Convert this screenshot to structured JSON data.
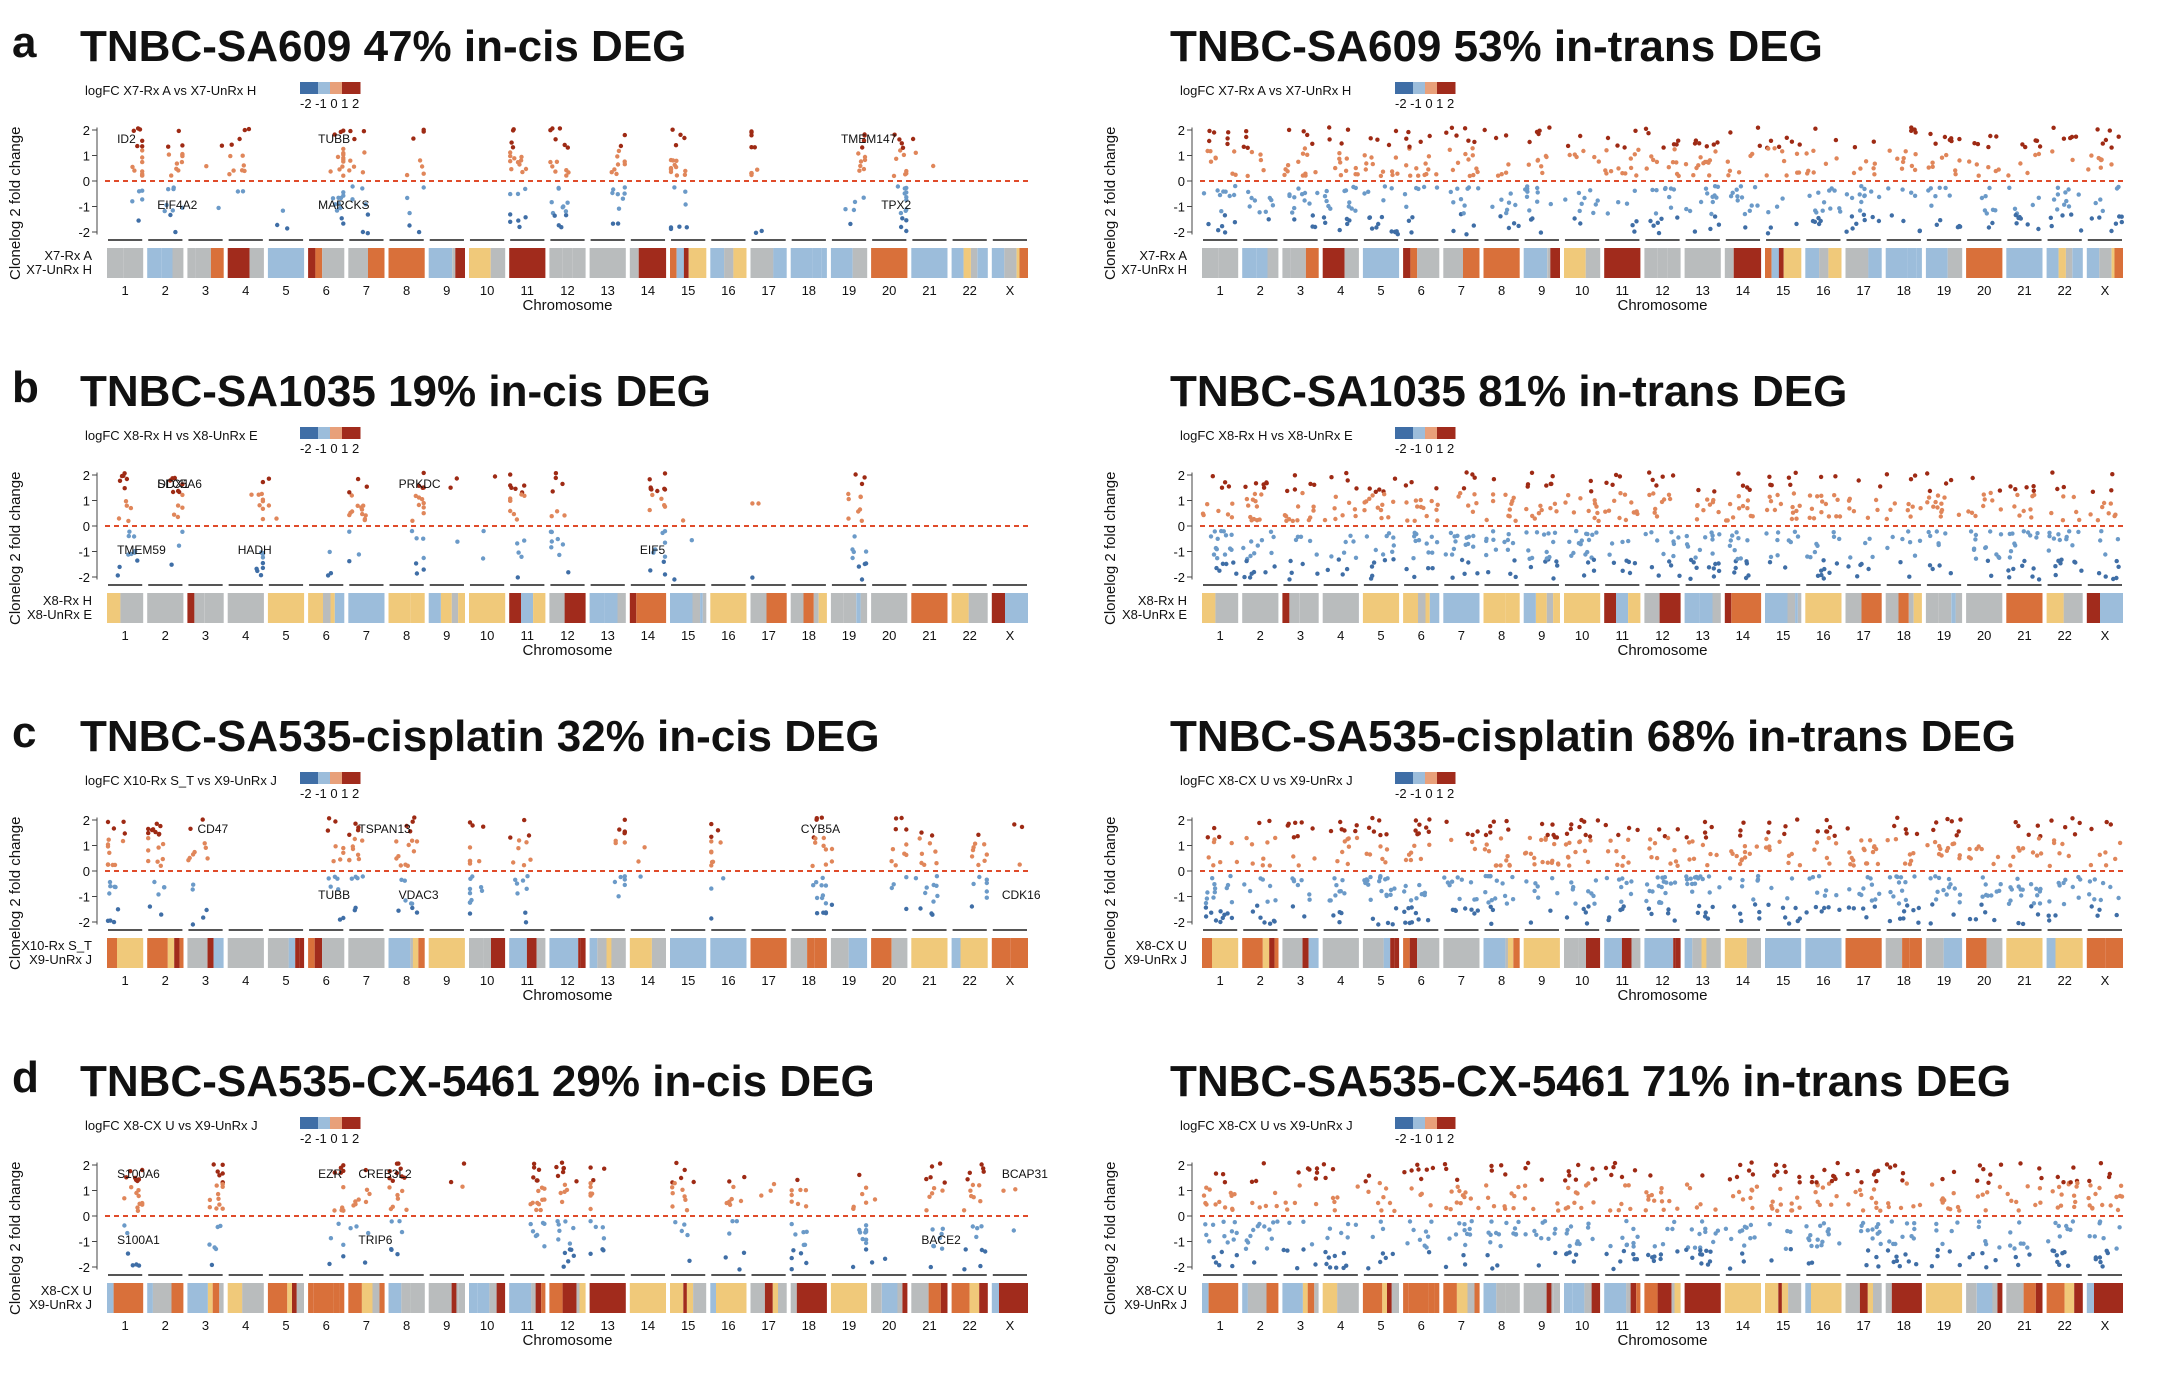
{
  "figure": {
    "chromosomes": [
      "1",
      "2",
      "3",
      "4",
      "5",
      "6",
      "7",
      "8",
      "9",
      "10",
      "11",
      "12",
      "13",
      "14",
      "15",
      "16",
      "17",
      "18",
      "19",
      "20",
      "21",
      "22",
      "X"
    ],
    "x_axis_label": "Chromosome",
    "y_axis_label": "Clonelog 2 fold change",
    "y_ticks": [
      "2",
      "1",
      "0",
      "-1",
      "-2"
    ],
    "legend_ticks": "-2 -1 0 1 2",
    "colors": {
      "up_dark": "#9e2a14",
      "up": "#e0865a",
      "down": "#6b9ac8",
      "down_dark": "#3f6ea6",
      "zero_line": "#e04b2a",
      "cn_gray": "#b9bcbd",
      "cn_yellow": "#f0c97a",
      "cn_orange": "#d9703a",
      "cn_red": "#a12b1c",
      "cn_blue": "#9cbddb"
    }
  },
  "panels": [
    {
      "letter": "a",
      "title": "TNBC-SA609 47% in-cis DEG",
      "legend_title": "logFC X7-Rx A vs X7-UnRx H",
      "track_labels": [
        "X7-Rx A",
        "X7-UnRx H"
      ],
      "genes": [
        [
          "ID2",
          1
        ],
        [
          "EIF4A2",
          2
        ],
        [
          "TUBB",
          6
        ],
        [
          "MARCKS",
          6
        ],
        [
          "TMEM147",
          19
        ],
        [
          "TPX2",
          20
        ]
      ]
    },
    {
      "letter": "",
      "title": "TNBC-SA609 53% in-trans DEG",
      "legend_title": "logFC X7-Rx A vs X7-UnRx H",
      "track_labels": [
        "X7-Rx A",
        "X7-UnRx H"
      ],
      "genes": []
    },
    {
      "letter": "b",
      "title": "TNBC-SA1035 19% in-cis DEG",
      "legend_title": "logFC X8-Rx H vs X8-UnRx E",
      "track_labels": [
        "X8-Rx H",
        "X8-UnRx E"
      ],
      "genes": [
        [
          "DDX1",
          2
        ],
        [
          "TMEM59",
          1
        ],
        [
          "SLC5A6",
          2
        ],
        [
          "HADH",
          4
        ],
        [
          "PRKDC",
          8
        ],
        [
          "EIF5",
          14
        ]
      ]
    },
    {
      "letter": "",
      "title": "TNBC-SA1035 81% in-trans DEG",
      "legend_title": "logFC X8-Rx H vs X8-UnRx E",
      "track_labels": [
        "X8-Rx H",
        "X8-UnRx E"
      ],
      "genes": []
    },
    {
      "letter": "c",
      "title": "TNBC-SA535-cisplatin 32% in-cis DEG",
      "legend_title": "logFC X10-Rx S_T vs X9-UnRx J",
      "track_labels": [
        "X10-Rx S_T",
        "X9-UnRx J"
      ],
      "genes": [
        [
          "CD47",
          3
        ],
        [
          "TUBB",
          6
        ],
        [
          "TSPAN13",
          7
        ],
        [
          "VDAC3",
          8
        ],
        [
          "CYB5A",
          18
        ],
        [
          "CDK16",
          "X"
        ]
      ]
    },
    {
      "letter": "",
      "title": "TNBC-SA535-cisplatin 68% in-trans DEG",
      "legend_title": "logFC X8-CX U vs X9-UnRx J",
      "track_labels": [
        "X8-CX U",
        "X9-UnRx J"
      ],
      "genes": []
    },
    {
      "letter": "d",
      "title": "TNBC-SA535-CX-5461 29% in-cis DEG",
      "legend_title": "logFC X8-CX U vs X9-UnRx J",
      "track_labels": [
        "X8-CX U",
        "X9-UnRx J"
      ],
      "genes": [
        [
          "S100A6",
          1
        ],
        [
          "S100A1",
          1
        ],
        [
          "EZR",
          6
        ],
        [
          "TRIP6",
          7
        ],
        [
          "CREB3L2",
          7
        ],
        [
          "BACE2",
          21
        ],
        [
          "BCAP31",
          "X"
        ]
      ]
    },
    {
      "letter": "",
      "title": "TNBC-SA535-CX-5461 71% in-trans DEG",
      "legend_title": "logFC X8-CX U vs X9-UnRx J",
      "track_labels": [
        "X8-CX U",
        "X9-UnRx J"
      ],
      "genes": []
    }
  ],
  "chart_data": [
    {
      "type": "scatter",
      "title": "TNBC-SA609 47% in-cis DEG",
      "xlabel": "Chromosome",
      "ylabel": "Clonelog 2 fold change",
      "ylim": [
        -2,
        2
      ],
      "categories": [
        "1",
        "2",
        "3",
        "4",
        "5",
        "6",
        "7",
        "8",
        "9",
        "10",
        "11",
        "12",
        "13",
        "14",
        "15",
        "16",
        "17",
        "18",
        "19",
        "20",
        "21",
        "22",
        "X"
      ],
      "series": [
        {
          "name": "logFC X7-Rx A vs X7-UnRx H"
        }
      ]
    },
    {
      "type": "scatter",
      "title": "TNBC-SA609 53% in-trans DEG",
      "xlabel": "Chromosome",
      "ylabel": "Clonelog 2 fold change",
      "ylim": [
        -2,
        2
      ],
      "categories": [
        "1",
        "2",
        "3",
        "4",
        "5",
        "6",
        "7",
        "8",
        "9",
        "10",
        "11",
        "12",
        "13",
        "14",
        "15",
        "16",
        "17",
        "18",
        "19",
        "20",
        "21",
        "22",
        "X"
      ],
      "series": [
        {
          "name": "logFC X7-Rx A vs X7-UnRx H"
        }
      ]
    },
    {
      "type": "scatter",
      "title": "TNBC-SA1035 19% in-cis DEG",
      "xlabel": "Chromosome",
      "ylabel": "Clonelog 2 fold change",
      "ylim": [
        -2,
        2
      ],
      "categories": [
        "1",
        "2",
        "3",
        "4",
        "5",
        "6",
        "7",
        "8",
        "9",
        "10",
        "11",
        "12",
        "13",
        "14",
        "15",
        "16",
        "17",
        "18",
        "19",
        "20",
        "21",
        "22",
        "X"
      ],
      "series": [
        {
          "name": "logFC X8-Rx H vs X8-UnRx E"
        }
      ]
    },
    {
      "type": "scatter",
      "title": "TNBC-SA1035 81% in-trans DEG",
      "xlabel": "Chromosome",
      "ylabel": "Clonelog 2 fold change",
      "ylim": [
        -2,
        2
      ],
      "categories": [
        "1",
        "2",
        "3",
        "4",
        "5",
        "6",
        "7",
        "8",
        "9",
        "10",
        "11",
        "12",
        "13",
        "14",
        "15",
        "16",
        "17",
        "18",
        "19",
        "20",
        "21",
        "22",
        "X"
      ],
      "series": [
        {
          "name": "logFC X8-Rx H vs X8-UnRx E"
        }
      ]
    },
    {
      "type": "scatter",
      "title": "TNBC-SA535-cisplatin 32% in-cis DEG",
      "xlabel": "Chromosome",
      "ylabel": "Clonelog 2 fold change",
      "ylim": [
        -2,
        2
      ],
      "categories": [
        "1",
        "2",
        "3",
        "4",
        "5",
        "6",
        "7",
        "8",
        "9",
        "10",
        "11",
        "12",
        "13",
        "14",
        "15",
        "16",
        "17",
        "18",
        "19",
        "20",
        "21",
        "22",
        "X"
      ],
      "series": [
        {
          "name": "logFC X10-Rx S_T vs X9-UnRx J"
        }
      ]
    },
    {
      "type": "scatter",
      "title": "TNBC-SA535-cisplatin 68% in-trans DEG",
      "xlabel": "Chromosome",
      "ylabel": "Clonelog 2 fold change",
      "ylim": [
        -2,
        2
      ],
      "categories": [
        "1",
        "2",
        "3",
        "4",
        "5",
        "6",
        "7",
        "8",
        "9",
        "10",
        "11",
        "12",
        "13",
        "14",
        "15",
        "16",
        "17",
        "18",
        "19",
        "20",
        "21",
        "22",
        "X"
      ],
      "series": [
        {
          "name": "logFC X8-CX U vs X9-UnRx J"
        }
      ]
    },
    {
      "type": "scatter",
      "title": "TNBC-SA535-CX-5461 29% in-cis DEG",
      "xlabel": "Chromosome",
      "ylabel": "Clonelog 2 fold change",
      "ylim": [
        -2,
        2
      ],
      "categories": [
        "1",
        "2",
        "3",
        "4",
        "5",
        "6",
        "7",
        "8",
        "9",
        "10",
        "11",
        "12",
        "13",
        "14",
        "15",
        "16",
        "17",
        "18",
        "19",
        "20",
        "21",
        "22",
        "X"
      ],
      "series": [
        {
          "name": "logFC X8-CX U vs X9-UnRx J"
        }
      ]
    },
    {
      "type": "scatter",
      "title": "TNBC-SA535-CX-5461 71% in-trans DEG",
      "xlabel": "Chromosome",
      "ylabel": "Clonelog 2 fold change",
      "ylim": [
        -2,
        2
      ],
      "categories": [
        "1",
        "2",
        "3",
        "4",
        "5",
        "6",
        "7",
        "8",
        "9",
        "10",
        "11",
        "12",
        "13",
        "14",
        "15",
        "16",
        "17",
        "18",
        "19",
        "20",
        "21",
        "22",
        "X"
      ],
      "series": [
        {
          "name": "logFC X8-CX U vs X9-UnRx J"
        }
      ]
    }
  ]
}
